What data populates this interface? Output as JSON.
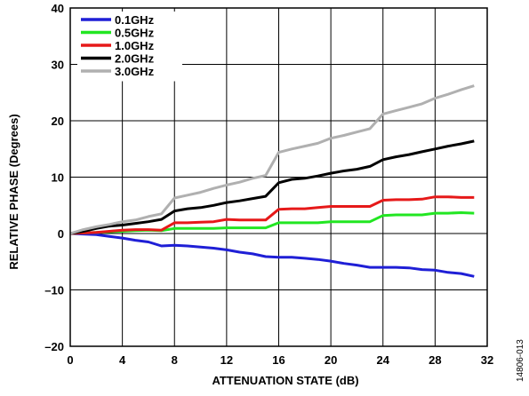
{
  "chart_data": {
    "type": "line",
    "xlabel": "ATTENUATION STATE (dB)",
    "ylabel": "RELATIVE PHASE (Degrees)",
    "xlim": [
      0,
      32
    ],
    "ylim": [
      -20,
      40
    ],
    "xticks": [
      0,
      4,
      8,
      12,
      16,
      20,
      24,
      28,
      32
    ],
    "yticks": [
      -20,
      -10,
      0,
      10,
      20,
      30,
      40
    ],
    "ytick_labels": [
      "–20",
      "–10",
      "0",
      "10",
      "20",
      "30",
      "40"
    ],
    "grid": true,
    "legend_position": "top-left",
    "x": [
      0,
      1,
      2,
      3,
      4,
      5,
      6,
      7,
      8,
      9,
      10,
      11,
      12,
      13,
      14,
      15,
      16,
      17,
      18,
      19,
      20,
      21,
      22,
      23,
      24,
      25,
      26,
      27,
      28,
      29,
      30,
      31
    ],
    "series": [
      {
        "name": "0.1GHz",
        "color": "#1f1fd6",
        "values": [
          0,
          -0.1,
          -0.2,
          -0.5,
          -0.8,
          -1.2,
          -1.5,
          -2.2,
          -2.1,
          -2.2,
          -2.4,
          -2.6,
          -2.9,
          -3.3,
          -3.6,
          -4.1,
          -4.2,
          -4.2,
          -4.4,
          -4.6,
          -4.9,
          -5.3,
          -5.6,
          -6.0,
          -6.0,
          -6.0,
          -6.1,
          -6.4,
          -6.5,
          -6.9,
          -7.1,
          -7.6
        ]
      },
      {
        "name": "0.5GHz",
        "color": "#22e622",
        "values": [
          0,
          0.1,
          0.2,
          0.3,
          0.4,
          0.5,
          0.6,
          0.5,
          0.9,
          0.9,
          0.9,
          0.9,
          1.0,
          1.0,
          1.0,
          1.0,
          1.9,
          1.9,
          1.9,
          1.9,
          2.1,
          2.1,
          2.1,
          2.1,
          3.2,
          3.3,
          3.3,
          3.3,
          3.6,
          3.6,
          3.7,
          3.6
        ]
      },
      {
        "name": "1.0GHz",
        "color": "#e61919",
        "values": [
          0,
          0.1,
          0.2,
          0.4,
          0.6,
          0.7,
          0.7,
          0.6,
          1.9,
          1.9,
          2.0,
          2.1,
          2.5,
          2.4,
          2.4,
          2.4,
          4.3,
          4.4,
          4.4,
          4.6,
          4.8,
          4.8,
          4.8,
          4.8,
          5.9,
          6.0,
          6.0,
          6.1,
          6.5,
          6.5,
          6.4,
          6.4
        ]
      },
      {
        "name": "2.0GHz",
        "color": "#000000",
        "values": [
          0,
          0.4,
          0.9,
          1.3,
          1.5,
          1.8,
          2.1,
          2.5,
          4.0,
          4.4,
          4.6,
          5.0,
          5.5,
          5.8,
          6.2,
          6.6,
          9.0,
          9.6,
          9.8,
          10.2,
          10.7,
          11.1,
          11.4,
          11.9,
          13.1,
          13.6,
          14.0,
          14.5,
          15.0,
          15.5,
          15.9,
          16.4
        ]
      },
      {
        "name": "3.0GHz",
        "color": "#b0b0b0",
        "values": [
          0,
          0.7,
          1.2,
          1.6,
          2.1,
          2.4,
          3.0,
          3.5,
          6.3,
          6.8,
          7.3,
          8.0,
          8.6,
          9.1,
          9.8,
          10.3,
          14.4,
          15.0,
          15.5,
          16.0,
          16.9,
          17.4,
          18.0,
          18.6,
          21.2,
          21.8,
          22.4,
          23.0,
          24.0,
          24.7,
          25.5,
          26.2
        ]
      }
    ]
  },
  "side_note": "14806-013"
}
